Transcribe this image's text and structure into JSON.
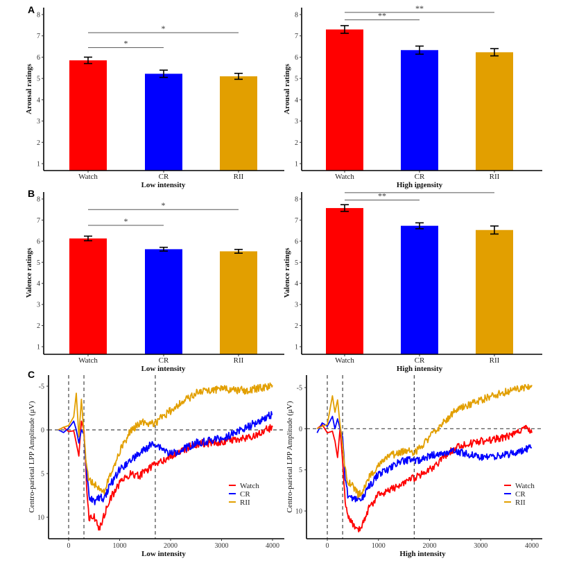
{
  "figure": {
    "panel_letters": [
      "A",
      "B",
      "C"
    ]
  },
  "colors": {
    "Watch": "#ff0000",
    "CR": "#0000ff",
    "RII": "#e29f00",
    "axis": "#000000",
    "sigline": "#555555",
    "dashed": "#444444"
  },
  "chart_data": [
    {
      "id": "A-low",
      "panel": "A",
      "type": "bar",
      "categories": [
        "Watch",
        "CR",
        "RII"
      ],
      "values": [
        5.85,
        5.22,
        5.1
      ],
      "errors": [
        0.15,
        0.17,
        0.14
      ],
      "xlabel": "Low intensity",
      "ylabel": "Arousal ratings",
      "ylim": [
        0.7,
        8.3
      ],
      "yticks": [
        "1",
        "2",
        "3",
        "4",
        "5",
        "6",
        "7",
        "8"
      ],
      "significance": [
        {
          "from": 0,
          "to": 1,
          "label": "*",
          "level": 6.45
        },
        {
          "from": 0,
          "to": 2,
          "label": "*",
          "level": 7.15
        }
      ]
    },
    {
      "id": "A-high",
      "panel": "A",
      "type": "bar",
      "categories": [
        "Watch",
        "CR",
        "RII"
      ],
      "values": [
        7.3,
        6.33,
        6.23
      ],
      "errors": [
        0.18,
        0.19,
        0.17
      ],
      "xlabel": "High intensity",
      "ylabel": "Arousal ratings",
      "ylim": [
        0.7,
        8.3
      ],
      "yticks": [
        "1",
        "2",
        "3",
        "4",
        "5",
        "6",
        "7",
        "8"
      ],
      "significance": [
        {
          "from": 0,
          "to": 1,
          "label": "**",
          "level": 7.75
        },
        {
          "from": 0,
          "to": 2,
          "label": "**",
          "level": 8.1
        }
      ]
    },
    {
      "id": "B-low",
      "panel": "B",
      "type": "bar",
      "categories": [
        "Watch",
        "CR",
        "RII"
      ],
      "values": [
        6.13,
        5.62,
        5.52
      ],
      "errors": [
        0.11,
        0.09,
        0.09
      ],
      "xlabel": "Low intensity",
      "ylabel": "Valence ratings",
      "ylim": [
        0.7,
        8.3
      ],
      "yticks": [
        "1",
        "2",
        "3",
        "4",
        "5",
        "6",
        "7",
        "8"
      ],
      "significance": [
        {
          "from": 0,
          "to": 1,
          "label": "*",
          "level": 6.75
        },
        {
          "from": 0,
          "to": 2,
          "label": "*",
          "level": 7.5
        }
      ]
    },
    {
      "id": "B-high",
      "panel": "B",
      "type": "bar",
      "categories": [
        "Watch",
        "CR",
        "RII"
      ],
      "values": [
        7.57,
        6.73,
        6.53
      ],
      "errors": [
        0.16,
        0.14,
        0.19
      ],
      "xlabel": "High intensity",
      "ylabel": "Valence ratings",
      "ylim": [
        0.7,
        8.3
      ],
      "yticks": [
        "1",
        "2",
        "3",
        "4",
        "5",
        "6",
        "7",
        "8"
      ],
      "significance": [
        {
          "from": 0,
          "to": 1,
          "label": "**",
          "level": 7.95
        },
        {
          "from": 0,
          "to": 2,
          "label": "**",
          "level": 8.3
        }
      ]
    },
    {
      "id": "C-low",
      "panel": "C",
      "type": "line",
      "xlabel": "Low intensity",
      "ylabel": "Centro-parietal LPP Amplitude (μV)",
      "xlim": [
        -400,
        4200
      ],
      "ylim": [
        12.5,
        -6.2
      ],
      "y_reversed": true,
      "xticks": [
        0,
        1000,
        2000,
        3000,
        4000
      ],
      "xtick_labels": [
        "0",
        "1000",
        "2000",
        "3000",
        "4000"
      ],
      "yticks": [
        -5,
        0,
        5,
        10
      ],
      "ytick_labels": [
        "-5",
        "0",
        "5",
        "10"
      ],
      "vlines": [
        0,
        300,
        1700
      ],
      "hline": 0,
      "legend": {
        "position": "bottom-right",
        "entries": [
          "Watch",
          "CR",
          "RII"
        ]
      },
      "series": [
        {
          "name": "Watch",
          "x": [
            -200,
            -100,
            0,
            100,
            150,
            200,
            250,
            300,
            350,
            400,
            500,
            600,
            700,
            800,
            1000,
            1200,
            1400,
            1600,
            1700,
            2000,
            2500,
            3000,
            3500,
            4000
          ],
          "values": [
            0,
            -0.3,
            0.2,
            0.1,
            1.5,
            3,
            -1,
            0,
            6,
            10.2,
            9.8,
            11.5,
            9.8,
            8,
            6.2,
            5,
            5.2,
            4.3,
            4,
            3,
            1.6,
            1.4,
            0.9,
            -0.3
          ]
        },
        {
          "name": "CR",
          "x": [
            -200,
            -100,
            0,
            100,
            150,
            200,
            250,
            300,
            350,
            400,
            500,
            600,
            700,
            800,
            1000,
            1200,
            1400,
            1600,
            1700,
            2000,
            2500,
            3000,
            3500,
            4000
          ],
          "values": [
            0,
            0.3,
            -0.2,
            -1,
            0,
            1.5,
            0,
            0.5,
            5,
            7.5,
            8.2,
            7.8,
            7.8,
            6.5,
            4.5,
            3.5,
            2.7,
            1.8,
            1.6,
            2.8,
            1.5,
            1,
            -0.3,
            -1.8
          ]
        },
        {
          "name": "RII",
          "x": [
            -200,
            -100,
            0,
            100,
            150,
            200,
            250,
            300,
            350,
            400,
            500,
            600,
            700,
            800,
            1000,
            1200,
            1400,
            1600,
            1700,
            2000,
            2500,
            3000,
            3500,
            4000
          ],
          "values": [
            0,
            -0.3,
            -0.5,
            -1.5,
            -4.2,
            0.8,
            -3.5,
            0.5,
            4,
            5.8,
            6.2,
            6.5,
            7,
            5.3,
            2.5,
            0.3,
            -0.9,
            -0.7,
            -0.8,
            -2.2,
            -4.2,
            -4.7,
            -4.5,
            -5.1
          ]
        }
      ]
    },
    {
      "id": "C-high",
      "panel": "C",
      "type": "line",
      "xlabel": "High intensity",
      "ylabel": "Centro-parietal LPP Amplitude (μV)",
      "xlim": [
        -400,
        4200
      ],
      "ylim": [
        13.2,
        -6.5
      ],
      "y_reversed": true,
      "xticks": [
        0,
        1000,
        2000,
        3000,
        4000
      ],
      "xtick_labels": [
        "0",
        "1000",
        "2000",
        "3000",
        "4000"
      ],
      "yticks": [
        -5,
        0,
        5,
        10
      ],
      "ytick_labels": [
        "-5",
        "0",
        "5",
        "10"
      ],
      "vlines": [
        0,
        300,
        1700
      ],
      "hline": 0,
      "legend": {
        "position": "bottom-right",
        "entries": [
          "Watch",
          "CR",
          "RII"
        ]
      },
      "series": [
        {
          "name": "Watch",
          "x": [
            -200,
            -100,
            0,
            100,
            150,
            200,
            250,
            300,
            350,
            400,
            500,
            600,
            700,
            800,
            1000,
            1200,
            1400,
            1600,
            1700,
            2000,
            2500,
            3000,
            3500,
            3900,
            4000
          ],
          "values": [
            0,
            -0.5,
            0.5,
            0.3,
            1.5,
            3.5,
            0,
            4,
            9,
            10.8,
            11.5,
            12.3,
            11.5,
            9.8,
            8,
            7.5,
            7,
            6.2,
            6,
            5,
            2.3,
            1.5,
            1,
            0,
            0.5
          ]
        },
        {
          "name": "CR",
          "x": [
            -200,
            -100,
            0,
            100,
            150,
            200,
            250,
            300,
            350,
            400,
            500,
            600,
            700,
            800,
            1000,
            1200,
            1400,
            1600,
            1700,
            2000,
            2500,
            3000,
            3500,
            4000
          ],
          "values": [
            0.5,
            -0.7,
            -0.3,
            -1.5,
            0,
            -1.2,
            0,
            1,
            6,
            8,
            8.7,
            8.5,
            8.5,
            7.2,
            5.5,
            5,
            4,
            3.8,
            4,
            3.3,
            2.7,
            3.5,
            3.2,
            2.3
          ]
        },
        {
          "name": "RII",
          "x": [
            -200,
            -100,
            0,
            100,
            150,
            200,
            250,
            300,
            350,
            400,
            500,
            600,
            700,
            800,
            1000,
            1200,
            1400,
            1600,
            1700,
            2000,
            2500,
            3000,
            3500,
            4000
          ],
          "values": [
            0,
            -0.3,
            -0.5,
            -4,
            -2,
            -3.5,
            -0.5,
            2,
            5,
            6.3,
            7,
            8,
            7.7,
            6,
            4.5,
            3.3,
            3,
            2.5,
            3,
            1,
            -2.2,
            -3.5,
            -4.5,
            -5.3
          ]
        }
      ]
    }
  ]
}
